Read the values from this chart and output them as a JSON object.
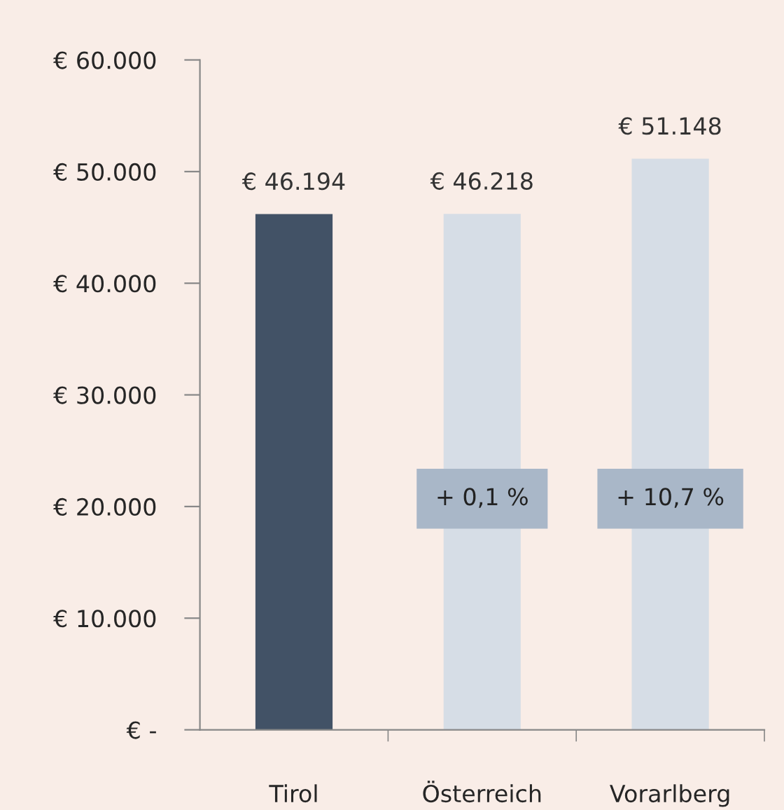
{
  "chart_data": {
    "type": "bar",
    "categories": [
      "Tirol",
      "Österreich",
      "Vorarlberg"
    ],
    "values": [
      46194,
      46218,
      51148
    ],
    "colors": [
      "#425266",
      "#d6dde6",
      "#d6dde6"
    ],
    "value_labels": [
      "€ 46.194",
      "€ 46.218",
      "€ 51.148"
    ],
    "ylim": [
      0,
      60000
    ],
    "yticks": [
      {
        "value": 0,
        "label": "€ -"
      },
      {
        "value": 10000,
        "label": "€ 10.000"
      },
      {
        "value": 20000,
        "label": "€ 20.000"
      },
      {
        "value": 30000,
        "label": "€ 30.000"
      },
      {
        "value": 40000,
        "label": "€ 40.000"
      },
      {
        "value": 50000,
        "label": "€ 50.000"
      },
      {
        "value": 60000,
        "label": "€ 60.000"
      }
    ],
    "annotations": [
      "+ 0,1 %",
      "+ 10,7 %"
    ],
    "grid": false,
    "legend": false
  }
}
